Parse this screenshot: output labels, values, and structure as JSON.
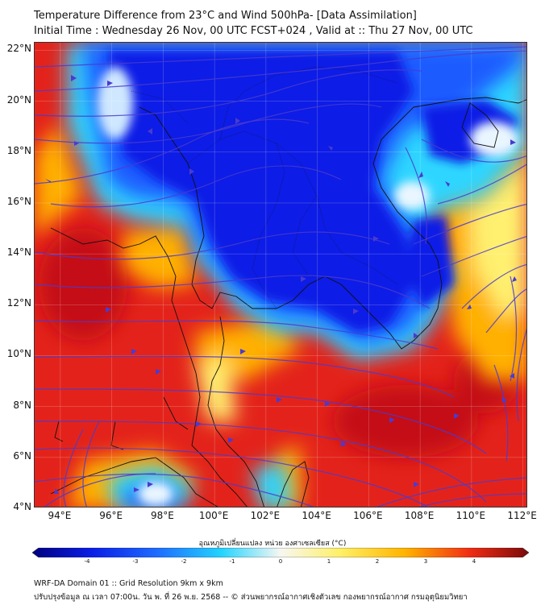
{
  "header": {
    "title_line1": "Temperature Difference from 23°C and Wind 500hPa- [Data Assimilation]",
    "title_line2": "Initial Time : Wednesday 26 Nov, 00 UTC FCST+024 , Valid at ::  Thu 27 Nov, 00 UTC"
  },
  "map": {
    "lat_labels": [
      "22°N",
      "20°N",
      "18°N",
      "16°N",
      "14°N",
      "12°N",
      "10°N",
      "8°N",
      "6°N",
      "4°N"
    ],
    "lat_values": [
      22,
      20,
      18,
      16,
      14,
      12,
      10,
      8,
      6,
      4
    ],
    "lon_labels": [
      "94°E",
      "96°E",
      "98°E",
      "100°E",
      "102°E",
      "104°E",
      "106°E",
      "108°E",
      "110°E",
      "112°E"
    ],
    "lon_values": [
      94,
      96,
      98,
      100,
      102,
      104,
      106,
      108,
      110,
      112
    ],
    "lon_range": [
      93,
      112.2
    ],
    "lat_range": [
      4,
      22.3
    ],
    "colors": {
      "deep_cold": "#0a1ee6",
      "cold": "#1e6bff",
      "cool": "#22d3ff",
      "neutral": "#f3f6ee",
      "warm": "#fff066",
      "warmer": "#ffb400",
      "hot": "#f12d14",
      "hottest": "#c80f14",
      "streamline": "#4a3bd0",
      "coast": "#111111"
    }
  },
  "colorbar": {
    "title": "อุณหภูมิเปลี่ยนแปลง หน่วย องศาเซลเซียส (°C)",
    "ticks": [
      "-4",
      "-3",
      "-2",
      "-1",
      "0",
      "1",
      "2",
      "3",
      "4"
    ],
    "tick_values": [
      -4,
      -3,
      -2,
      -1,
      0,
      1,
      2,
      3,
      4
    ]
  },
  "footer": {
    "line1": "WRF-DA Domain 01 :: Grid Resolution 9km x 9km",
    "line2": "ปรับปรุงข้อมูล ณ เวลา 07:00น. วัน พ. ที่ 26 พ.ย. 2568 -- © ส่วนพยากรณ์อากาศเชิงตัวเลข กองพยากรณ์อากาศ กรมอุตุนิยมวิทยา"
  }
}
